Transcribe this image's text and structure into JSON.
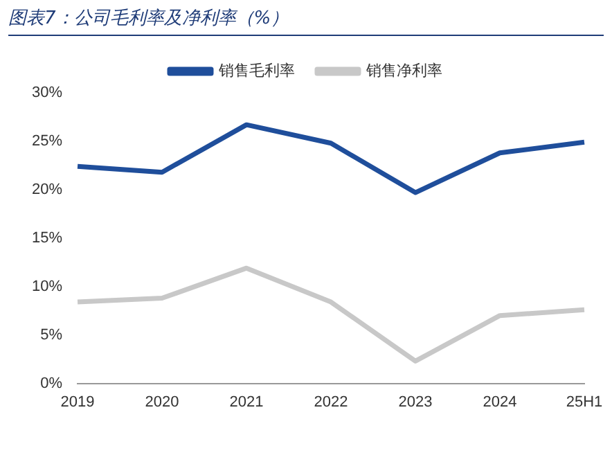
{
  "chart_data": {
    "type": "line",
    "title": "图表7：公司毛利率及净利率（%）",
    "categories": [
      "2019",
      "2020",
      "2021",
      "2022",
      "2023",
      "2024",
      "25H1"
    ],
    "series": [
      {
        "name": "销售毛利率",
        "color": "#1f4e9b",
        "values": [
          22.4,
          21.8,
          26.7,
          24.8,
          19.7,
          23.8,
          24.9
        ]
      },
      {
        "name": "销售净利率",
        "color": "#c8c8c8",
        "values": [
          8.4,
          8.8,
          11.9,
          8.4,
          2.3,
          7.0,
          7.6
        ]
      }
    ],
    "ylim": [
      0,
      30
    ],
    "yticks": [
      {
        "value": 0,
        "label": "0%"
      },
      {
        "value": 5,
        "label": "5%"
      },
      {
        "value": 10,
        "label": "10%"
      },
      {
        "value": 15,
        "label": "15%"
      },
      {
        "value": 20,
        "label": "20%"
      },
      {
        "value": 25,
        "label": "25%"
      },
      {
        "value": 30,
        "label": "30%"
      }
    ],
    "grid": false,
    "legend": "top",
    "marker": "none",
    "line_style": "solid"
  }
}
